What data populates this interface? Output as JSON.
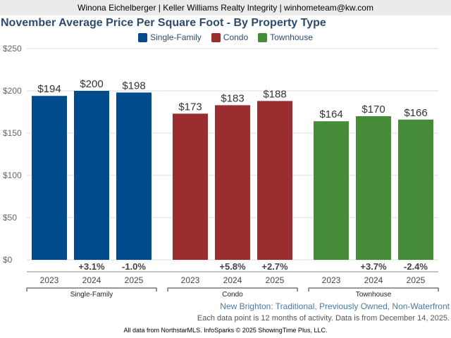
{
  "header": "Winona Eichelberger | Keller Williams Realty Integrity | winhometeam@kw.com",
  "chart_data": {
    "type": "bar",
    "title": "November Average Price Per Square Foot - By Property Type",
    "ylim": [
      0,
      250
    ],
    "yticks": [
      "$0",
      "$50",
      "$100",
      "$150",
      "$200",
      "$250"
    ],
    "yvalues": [
      0,
      50,
      100,
      150,
      200,
      250
    ],
    "grid": true,
    "legend_position": "top",
    "groups": [
      {
        "name": "Single-Family",
        "color": "#004b8d",
        "years": [
          "2023",
          "2024",
          "2025"
        ],
        "values": [
          194,
          200,
          198
        ],
        "labels": [
          "$194",
          "$200",
          "$198"
        ],
        "changes": [
          "",
          "+3.1%",
          "-1.0%"
        ]
      },
      {
        "name": "Condo",
        "color": "#9a2d2f",
        "years": [
          "2023",
          "2024",
          "2025"
        ],
        "values": [
          173,
          183,
          188
        ],
        "labels": [
          "$173",
          "$183",
          "$188"
        ],
        "changes": [
          "",
          "+5.8%",
          "+2.7%"
        ]
      },
      {
        "name": "Townhouse",
        "color": "#468c38",
        "years": [
          "2023",
          "2024",
          "2025"
        ],
        "values": [
          164,
          170,
          166
        ],
        "labels": [
          "$164",
          "$170",
          "$166"
        ],
        "changes": [
          "",
          "+3.7%",
          "-2.4%"
        ]
      }
    ]
  },
  "subtitle": "New Brighton: Traditional, Previously Owned, Non-Waterfront",
  "note": "Each data point is 12 months of activity. Data is from December 14, 2025.",
  "footer": "All data from NorthstarMLS. InfoSparks © 2025 ShowingTime Plus, LLC."
}
